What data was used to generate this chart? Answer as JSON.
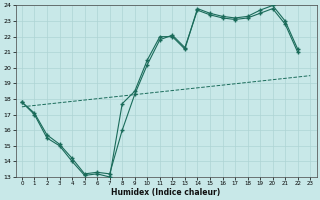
{
  "xlabel": "Humidex (Indice chaleur)",
  "background_color": "#c8e8e8",
  "grid_color": "#aed4d4",
  "line_color": "#1a6b5a",
  "xlim": [
    -0.5,
    23.5
  ],
  "ylim": [
    13,
    24
  ],
  "xticks": [
    0,
    1,
    2,
    3,
    4,
    5,
    6,
    7,
    8,
    9,
    10,
    11,
    12,
    13,
    14,
    15,
    16,
    17,
    18,
    19,
    20,
    21,
    22,
    23
  ],
  "yticks": [
    13,
    14,
    15,
    16,
    17,
    18,
    19,
    20,
    21,
    22,
    23,
    24
  ],
  "line1_x": [
    0,
    1,
    2,
    3,
    4,
    5,
    6,
    7,
    8,
    9,
    10,
    11,
    12,
    13,
    14,
    15,
    16,
    17,
    18,
    19,
    20,
    21,
    22
  ],
  "line1_y": [
    17.8,
    17.0,
    15.5,
    15.0,
    14.0,
    13.1,
    13.2,
    13.0,
    17.7,
    18.5,
    20.5,
    22.0,
    22.0,
    21.2,
    23.8,
    23.5,
    23.3,
    23.2,
    23.3,
    23.7,
    24.0,
    23.0,
    21.2
  ],
  "line2_x": [
    0,
    1,
    2,
    3,
    4,
    5,
    6,
    7,
    8,
    9,
    10,
    11,
    12,
    13,
    14,
    15,
    16,
    17,
    18,
    19,
    20,
    21,
    22
  ],
  "line2_y": [
    17.8,
    17.1,
    15.7,
    15.1,
    14.2,
    13.2,
    13.3,
    13.2,
    16.0,
    18.3,
    20.2,
    21.8,
    22.1,
    21.3,
    23.7,
    23.4,
    23.2,
    23.1,
    23.2,
    23.5,
    23.8,
    22.8,
    21.0
  ],
  "line3_x": [
    0,
    23
  ],
  "line3_y": [
    17.5,
    19.5
  ]
}
